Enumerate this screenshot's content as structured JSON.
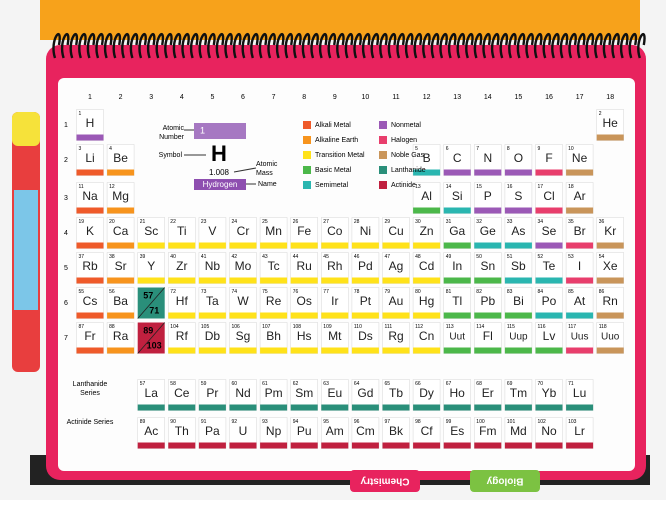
{
  "groups": [
    1,
    2,
    3,
    4,
    5,
    6,
    7,
    8,
    9,
    10,
    11,
    12,
    13,
    14,
    15,
    16,
    17,
    18
  ],
  "periods": [
    1,
    2,
    3,
    4,
    5,
    6,
    7
  ],
  "key": {
    "number": "1",
    "symbol": "H",
    "mass": "1.008",
    "name": "Hydrogen",
    "number_label": "Atomic Number",
    "symbol_label": "Symbol",
    "mass_label": "Atomic Mass",
    "name_label": "Name"
  },
  "series_labels": {
    "lanthanide": "Lanthanide Series",
    "actinide": "Actinide Series"
  },
  "placeholders": [
    [
      57,
      71
    ],
    [
      89,
      103
    ]
  ],
  "legend": [
    {
      "name": "Alkali Metal",
      "color": "#ef5a2a",
      "elements": [
        [
          3,
          "Li"
        ],
        [
          11,
          "Na"
        ],
        [
          19,
          "K"
        ],
        [
          37,
          "Rb"
        ],
        [
          55,
          "Cs"
        ],
        [
          87,
          "Fr"
        ]
      ]
    },
    {
      "name": "Alkaline Earth",
      "color": "#f7941d",
      "elements": [
        [
          4,
          "Be"
        ],
        [
          12,
          "Mg"
        ],
        [
          20,
          "Ca"
        ],
        [
          38,
          "Sr"
        ],
        [
          56,
          "Ba"
        ],
        [
          88,
          "Ra"
        ]
      ]
    },
    {
      "name": "Transition Metal",
      "color": "#ffe21a",
      "elements": [
        [
          21,
          "Sc"
        ],
        [
          22,
          "Ti"
        ],
        [
          23,
          "V"
        ],
        [
          24,
          "Cr"
        ],
        [
          25,
          "Mn"
        ],
        [
          26,
          "Fe"
        ],
        [
          27,
          "Co"
        ],
        [
          28,
          "Ni"
        ],
        [
          29,
          "Cu"
        ],
        [
          30,
          "Zn"
        ],
        [
          39,
          "Y"
        ],
        [
          40,
          "Zr"
        ],
        [
          41,
          "Nb"
        ],
        [
          42,
          "Mo"
        ],
        [
          43,
          "Tc"
        ],
        [
          44,
          "Ru"
        ],
        [
          45,
          "Rh"
        ],
        [
          46,
          "Pd"
        ],
        [
          47,
          "Ag"
        ],
        [
          48,
          "Cd"
        ],
        [
          72,
          "Hf"
        ],
        [
          73,
          "Ta"
        ],
        [
          74,
          "W"
        ],
        [
          75,
          "Re"
        ],
        [
          76,
          "Os"
        ],
        [
          77,
          "Ir"
        ],
        [
          78,
          "Pt"
        ],
        [
          79,
          "Au"
        ],
        [
          80,
          "Hg"
        ],
        [
          104,
          "Rf"
        ],
        [
          105,
          "Db"
        ],
        [
          106,
          "Sg"
        ],
        [
          107,
          "Bh"
        ],
        [
          108,
          "Hs"
        ],
        [
          109,
          "Mt"
        ],
        [
          110,
          "Ds"
        ],
        [
          111,
          "Rg"
        ],
        [
          112,
          "Cn"
        ]
      ]
    },
    {
      "name": "Basic Metal",
      "color": "#4cb84a",
      "elements": [
        [
          13,
          "Al"
        ],
        [
          31,
          "Ga"
        ],
        [
          49,
          "In"
        ],
        [
          50,
          "Sn"
        ],
        [
          81,
          "Tl"
        ],
        [
          82,
          "Pb"
        ],
        [
          83,
          "Bi"
        ],
        [
          113,
          "Uut"
        ],
        [
          114,
          "Fl"
        ],
        [
          115,
          "Uup"
        ],
        [
          116,
          "Lv"
        ]
      ]
    },
    {
      "name": "Semimetal",
      "color": "#2ab6b0",
      "elements": [
        [
          5,
          "B"
        ],
        [
          14,
          "Si"
        ],
        [
          32,
          "Ge"
        ],
        [
          33,
          "As"
        ],
        [
          51,
          "Sb"
        ],
        [
          52,
          "Te"
        ],
        [
          84,
          "Po"
        ],
        [
          85,
          "At"
        ]
      ]
    },
    {
      "name": "Nonmetal",
      "color": "#9b59b6",
      "elements": [
        [
          1,
          "H"
        ],
        [
          6,
          "C"
        ],
        [
          7,
          "N"
        ],
        [
          8,
          "O"
        ],
        [
          15,
          "P"
        ],
        [
          16,
          "S"
        ],
        [
          34,
          "Se"
        ]
      ]
    },
    {
      "name": "Halogen",
      "color": "#e83e6c",
      "elements": [
        [
          9,
          "F"
        ],
        [
          17,
          "Cl"
        ],
        [
          35,
          "Br"
        ],
        [
          53,
          "I"
        ],
        [
          117,
          "Uus"
        ]
      ]
    },
    {
      "name": "Noble Gas",
      "color": "#c9955a",
      "elements": [
        [
          2,
          "He"
        ],
        [
          10,
          "Ne"
        ],
        [
          18,
          "Ar"
        ],
        [
          36,
          "Kr"
        ],
        [
          54,
          "Xe"
        ],
        [
          86,
          "Rn"
        ],
        [
          118,
          "Uuo"
        ]
      ]
    },
    {
      "name": "Lanthanide",
      "color": "#2a8f7a",
      "elements": [
        [
          57,
          "La"
        ],
        [
          58,
          "Ce"
        ],
        [
          59,
          "Pr"
        ],
        [
          60,
          "Nd"
        ],
        [
          61,
          "Pm"
        ],
        [
          62,
          "Sm"
        ],
        [
          63,
          "Eu"
        ],
        [
          64,
          "Gd"
        ],
        [
          65,
          "Tb"
        ],
        [
          66,
          "Dy"
        ],
        [
          67,
          "Ho"
        ],
        [
          68,
          "Er"
        ],
        [
          69,
          "Tm"
        ],
        [
          70,
          "Yb"
        ],
        [
          71,
          "Lu"
        ]
      ]
    },
    {
      "name": "Actinide",
      "color": "#c0203f",
      "elements": [
        [
          89,
          "Ac"
        ],
        [
          90,
          "Th"
        ],
        [
          91,
          "Pa"
        ],
        [
          92,
          "U"
        ],
        [
          93,
          "Np"
        ],
        [
          94,
          "Pu"
        ],
        [
          95,
          "Am"
        ],
        [
          96,
          "Cm"
        ],
        [
          97,
          "Bk"
        ],
        [
          98,
          "Cf"
        ],
        [
          99,
          "Es"
        ],
        [
          100,
          "Fm"
        ],
        [
          101,
          "Md"
        ],
        [
          102,
          "No"
        ],
        [
          103,
          "Lr"
        ]
      ]
    }
  ],
  "tabs": [
    "Chemistry",
    "Biology"
  ]
}
